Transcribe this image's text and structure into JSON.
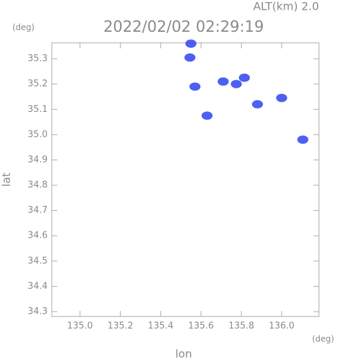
{
  "chart_data": {
    "type": "scatter",
    "header": "ALT(km) 2.0",
    "title": "2022/02/02 02:29:19",
    "y_unit": "(deg)",
    "x_unit": "(deg)",
    "ylabel": "lat",
    "xlabel": "lon",
    "color": "#3a4ff0",
    "x": [
      135.55,
      135.545,
      135.71,
      135.815,
      135.775,
      135.88,
      136.0,
      136.105,
      135.63,
      135.57
    ],
    "values": [
      35.36,
      35.305,
      35.21,
      35.225,
      35.2,
      35.12,
      35.145,
      34.98,
      35.075,
      35.19
    ],
    "xlim": [
      134.86,
      136.185
    ],
    "ylim": [
      34.281,
      35.363
    ],
    "xticks": [
      {
        "value": 135,
        "label": "135.0"
      },
      135.2,
      135.4,
      135.6,
      135.8,
      {
        "value": 136,
        "label": "136.0"
      }
    ],
    "yticks": [
      34.3,
      34.4,
      34.5,
      34.6,
      34.7,
      34.8,
      34.9,
      {
        "value": 35,
        "label": "35.0"
      },
      35.1,
      35.2,
      35.3
    ]
  }
}
